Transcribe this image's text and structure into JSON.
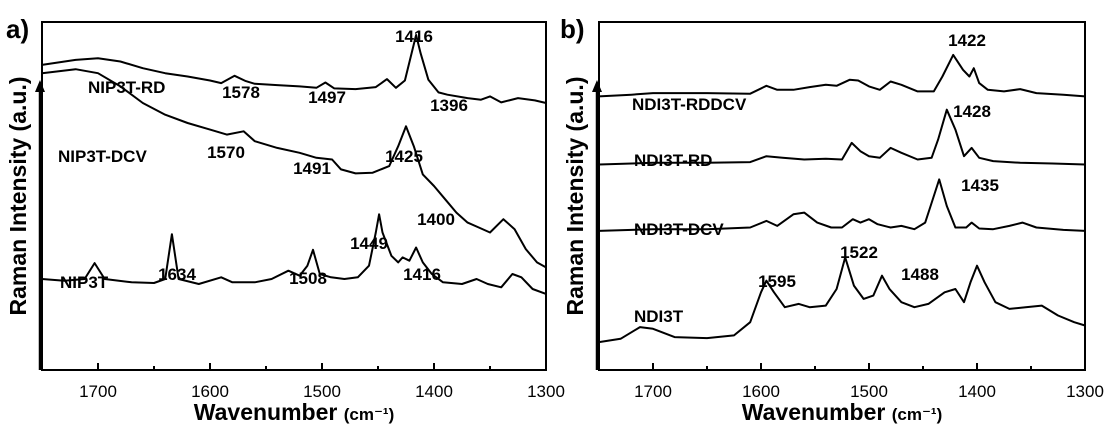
{
  "chart_data": [
    {
      "type": "line",
      "panel_label": "a)",
      "xlabel": "Wavenumber",
      "xunit": "(cm⁻¹)",
      "ylabel": "Raman Intensity (a.u.)",
      "xlim": [
        1750,
        1300
      ],
      "x_reversed": true,
      "xticks": [
        1700,
        1600,
        1500,
        1400,
        1300
      ],
      "y_tick_labels": false,
      "series": [
        {
          "name": "NIP3T-RD",
          "points": [
            [
              1750,
              0.895
            ],
            [
              1720,
              0.91
            ],
            [
              1700,
              0.915
            ],
            [
              1680,
              0.905
            ],
            [
              1660,
              0.885
            ],
            [
              1640,
              0.87
            ],
            [
              1620,
              0.86
            ],
            [
              1600,
              0.848
            ],
            [
              1590,
              0.84
            ],
            [
              1578,
              0.862
            ],
            [
              1568,
              0.846
            ],
            [
              1560,
              0.838
            ],
            [
              1540,
              0.834
            ],
            [
              1520,
              0.83
            ],
            [
              1505,
              0.826
            ],
            [
              1497,
              0.842
            ],
            [
              1489,
              0.824
            ],
            [
              1470,
              0.822
            ],
            [
              1452,
              0.828
            ],
            [
              1442,
              0.852
            ],
            [
              1434,
              0.826
            ],
            [
              1426,
              0.848
            ],
            [
              1420,
              0.93
            ],
            [
              1416,
              0.985
            ],
            [
              1412,
              0.93
            ],
            [
              1405,
              0.85
            ],
            [
              1396,
              0.812
            ],
            [
              1388,
              0.805
            ],
            [
              1370,
              0.795
            ],
            [
              1358,
              0.79
            ],
            [
              1350,
              0.8
            ],
            [
              1340,
              0.782
            ],
            [
              1325,
              0.795
            ],
            [
              1310,
              0.788
            ],
            [
              1300,
              0.78
            ]
          ],
          "annotations": [
            {
              "x": 1578,
              "label": "1578"
            },
            {
              "x": 1497,
              "label": "1497"
            },
            {
              "x": 1416,
              "label": "1416"
            },
            {
              "x": 1396,
              "label": "1396"
            }
          ]
        },
        {
          "name": "NIP3T-DCV",
          "points": [
            [
              1750,
              0.87
            ],
            [
              1720,
              0.882
            ],
            [
              1700,
              0.87
            ],
            [
              1680,
              0.83
            ],
            [
              1660,
              0.78
            ],
            [
              1640,
              0.745
            ],
            [
              1620,
              0.72
            ],
            [
              1600,
              0.7
            ],
            [
              1585,
              0.685
            ],
            [
              1570,
              0.695
            ],
            [
              1560,
              0.665
            ],
            [
              1540,
              0.645
            ],
            [
              1520,
              0.63
            ],
            [
              1505,
              0.615
            ],
            [
              1491,
              0.61
            ],
            [
              1483,
              0.58
            ],
            [
              1470,
              0.568
            ],
            [
              1455,
              0.57
            ],
            [
              1440,
              0.59
            ],
            [
              1432,
              0.65
            ],
            [
              1425,
              0.71
            ],
            [
              1418,
              0.65
            ],
            [
              1410,
              0.565
            ],
            [
              1400,
              0.53
            ],
            [
              1390,
              0.49
            ],
            [
              1380,
              0.45
            ],
            [
              1370,
              0.42
            ],
            [
              1360,
              0.405
            ],
            [
              1350,
              0.39
            ],
            [
              1338,
              0.43
            ],
            [
              1328,
              0.4
            ],
            [
              1318,
              0.34
            ],
            [
              1308,
              0.3
            ],
            [
              1300,
              0.285
            ]
          ],
          "annotations": [
            {
              "x": 1570,
              "label": "1570"
            },
            {
              "x": 1491,
              "label": "1491"
            },
            {
              "x": 1425,
              "label": "1425"
            },
            {
              "x": 1400,
              "label": "1400"
            }
          ]
        },
        {
          "name": "NIP3T",
          "points": [
            [
              1750,
              0.25
            ],
            [
              1730,
              0.245
            ],
            [
              1712,
              0.25
            ],
            [
              1703,
              0.298
            ],
            [
              1694,
              0.25
            ],
            [
              1670,
              0.24
            ],
            [
              1650,
              0.238
            ],
            [
              1640,
              0.25
            ],
            [
              1634,
              0.385
            ],
            [
              1628,
              0.25
            ],
            [
              1610,
              0.235
            ],
            [
              1590,
              0.255
            ],
            [
              1580,
              0.24
            ],
            [
              1560,
              0.24
            ],
            [
              1545,
              0.25
            ],
            [
              1530,
              0.275
            ],
            [
              1520,
              0.26
            ],
            [
              1513,
              0.29
            ],
            [
              1508,
              0.338
            ],
            [
              1502,
              0.265
            ],
            [
              1492,
              0.255
            ],
            [
              1480,
              0.25
            ],
            [
              1468,
              0.255
            ],
            [
              1458,
              0.29
            ],
            [
              1452,
              0.39
            ],
            [
              1449,
              0.445
            ],
            [
              1446,
              0.39
            ],
            [
              1438,
              0.32
            ],
            [
              1432,
              0.3
            ],
            [
              1428,
              0.315
            ],
            [
              1422,
              0.305
            ],
            [
              1416,
              0.345
            ],
            [
              1410,
              0.3
            ],
            [
              1402,
              0.265
            ],
            [
              1392,
              0.24
            ],
            [
              1375,
              0.235
            ],
            [
              1362,
              0.25
            ],
            [
              1352,
              0.235
            ],
            [
              1340,
              0.225
            ],
            [
              1330,
              0.265
            ],
            [
              1322,
              0.255
            ],
            [
              1312,
              0.22
            ],
            [
              1300,
              0.205
            ]
          ],
          "annotations": [
            {
              "x": 1634,
              "label": "1634"
            },
            {
              "x": 1508,
              "label": "1508"
            },
            {
              "x": 1449,
              "label": "1449"
            },
            {
              "x": 1416,
              "label": "1416"
            }
          ]
        }
      ]
    },
    {
      "type": "line",
      "panel_label": "b)",
      "xlabel": "Wavenumber",
      "xunit": "(cm⁻¹)",
      "ylabel": "Raman Intensity (a.u.)",
      "xlim": [
        1750,
        1300
      ],
      "x_reversed": true,
      "xticks": [
        1700,
        1600,
        1500,
        1400,
        1300
      ],
      "y_tick_labels": false,
      "series": [
        {
          "name": "NDI3T-RDDCV",
          "points": [
            [
              1750,
              0.8
            ],
            [
              1720,
              0.805
            ],
            [
              1700,
              0.81
            ],
            [
              1650,
              0.81
            ],
            [
              1610,
              0.808
            ],
            [
              1595,
              0.832
            ],
            [
              1585,
              0.82
            ],
            [
              1570,
              0.82
            ],
            [
              1555,
              0.828
            ],
            [
              1540,
              0.835
            ],
            [
              1530,
              0.832
            ],
            [
              1518,
              0.85
            ],
            [
              1510,
              0.848
            ],
            [
              1500,
              0.83
            ],
            [
              1490,
              0.82
            ],
            [
              1480,
              0.845
            ],
            [
              1470,
              0.835
            ],
            [
              1455,
              0.815
            ],
            [
              1440,
              0.815
            ],
            [
              1432,
              0.86
            ],
            [
              1422,
              0.925
            ],
            [
              1413,
              0.88
            ],
            [
              1407,
              0.86
            ],
            [
              1403,
              0.885
            ],
            [
              1398,
              0.84
            ],
            [
              1390,
              0.82
            ],
            [
              1375,
              0.815
            ],
            [
              1360,
              0.822
            ],
            [
              1345,
              0.81
            ],
            [
              1320,
              0.805
            ],
            [
              1300,
              0.8
            ]
          ],
          "annotations": [
            {
              "x": 1422,
              "label": "1422"
            }
          ]
        },
        {
          "name": "NDI3T-RD",
          "points": [
            [
              1750,
              0.595
            ],
            [
              1700,
              0.6
            ],
            [
              1650,
              0.6
            ],
            [
              1610,
              0.602
            ],
            [
              1595,
              0.62
            ],
            [
              1580,
              0.615
            ],
            [
              1560,
              0.61
            ],
            [
              1540,
              0.612
            ],
            [
              1525,
              0.61
            ],
            [
              1516,
              0.66
            ],
            [
              1508,
              0.635
            ],
            [
              1500,
              0.62
            ],
            [
              1490,
              0.615
            ],
            [
              1480,
              0.645
            ],
            [
              1470,
              0.63
            ],
            [
              1455,
              0.61
            ],
            [
              1442,
              0.615
            ],
            [
              1436,
              0.67
            ],
            [
              1428,
              0.76
            ],
            [
              1420,
              0.7
            ],
            [
              1412,
              0.62
            ],
            [
              1405,
              0.645
            ],
            [
              1398,
              0.615
            ],
            [
              1385,
              0.605
            ],
            [
              1360,
              0.6
            ],
            [
              1330,
              0.598
            ],
            [
              1300,
              0.595
            ]
          ],
          "annotations": [
            {
              "x": 1428,
              "label": "1428"
            }
          ]
        },
        {
          "name": "NDI3T-DCV",
          "points": [
            [
              1750,
              0.395
            ],
            [
              1700,
              0.4
            ],
            [
              1650,
              0.4
            ],
            [
              1610,
              0.405
            ],
            [
              1595,
              0.425
            ],
            [
              1585,
              0.41
            ],
            [
              1570,
              0.445
            ],
            [
              1560,
              0.45
            ],
            [
              1548,
              0.42
            ],
            [
              1535,
              0.405
            ],
            [
              1525,
              0.405
            ],
            [
              1515,
              0.43
            ],
            [
              1508,
              0.42
            ],
            [
              1500,
              0.43
            ],
            [
              1492,
              0.415
            ],
            [
              1480,
              0.405
            ],
            [
              1470,
              0.41
            ],
            [
              1458,
              0.4
            ],
            [
              1448,
              0.42
            ],
            [
              1443,
              0.47
            ],
            [
              1435,
              0.55
            ],
            [
              1428,
              0.47
            ],
            [
              1420,
              0.405
            ],
            [
              1410,
              0.405
            ],
            [
              1405,
              0.42
            ],
            [
              1398,
              0.402
            ],
            [
              1385,
              0.4
            ],
            [
              1370,
              0.41
            ],
            [
              1358,
              0.42
            ],
            [
              1345,
              0.405
            ],
            [
              1320,
              0.398
            ],
            [
              1300,
              0.395
            ]
          ],
          "annotations": [
            {
              "x": 1435,
              "label": "1435"
            }
          ]
        },
        {
          "name": "NDI3T",
          "points": [
            [
              1750,
              0.06
            ],
            [
              1730,
              0.07
            ],
            [
              1712,
              0.105
            ],
            [
              1700,
              0.1
            ],
            [
              1680,
              0.075
            ],
            [
              1650,
              0.072
            ],
            [
              1625,
              0.08
            ],
            [
              1610,
              0.12
            ],
            [
              1600,
              0.21
            ],
            [
              1595,
              0.245
            ],
            [
              1588,
              0.21
            ],
            [
              1578,
              0.165
            ],
            [
              1565,
              0.175
            ],
            [
              1555,
              0.165
            ],
            [
              1540,
              0.17
            ],
            [
              1530,
              0.22
            ],
            [
              1522,
              0.315
            ],
            [
              1514,
              0.23
            ],
            [
              1505,
              0.19
            ],
            [
              1496,
              0.2
            ],
            [
              1488,
              0.26
            ],
            [
              1481,
              0.22
            ],
            [
              1470,
              0.18
            ],
            [
              1458,
              0.165
            ],
            [
              1445,
              0.175
            ],
            [
              1430,
              0.21
            ],
            [
              1420,
              0.22
            ],
            [
              1412,
              0.18
            ],
            [
              1406,
              0.24
            ],
            [
              1400,
              0.29
            ],
            [
              1393,
              0.24
            ],
            [
              1383,
              0.18
            ],
            [
              1370,
              0.16
            ],
            [
              1355,
              0.165
            ],
            [
              1340,
              0.17
            ],
            [
              1325,
              0.14
            ],
            [
              1310,
              0.12
            ],
            [
              1300,
              0.11
            ]
          ],
          "annotations": [
            {
              "x": 1595,
              "label": "1595"
            },
            {
              "x": 1522,
              "label": "1522"
            },
            {
              "x": 1488,
              "label": "1488"
            }
          ]
        }
      ]
    }
  ]
}
